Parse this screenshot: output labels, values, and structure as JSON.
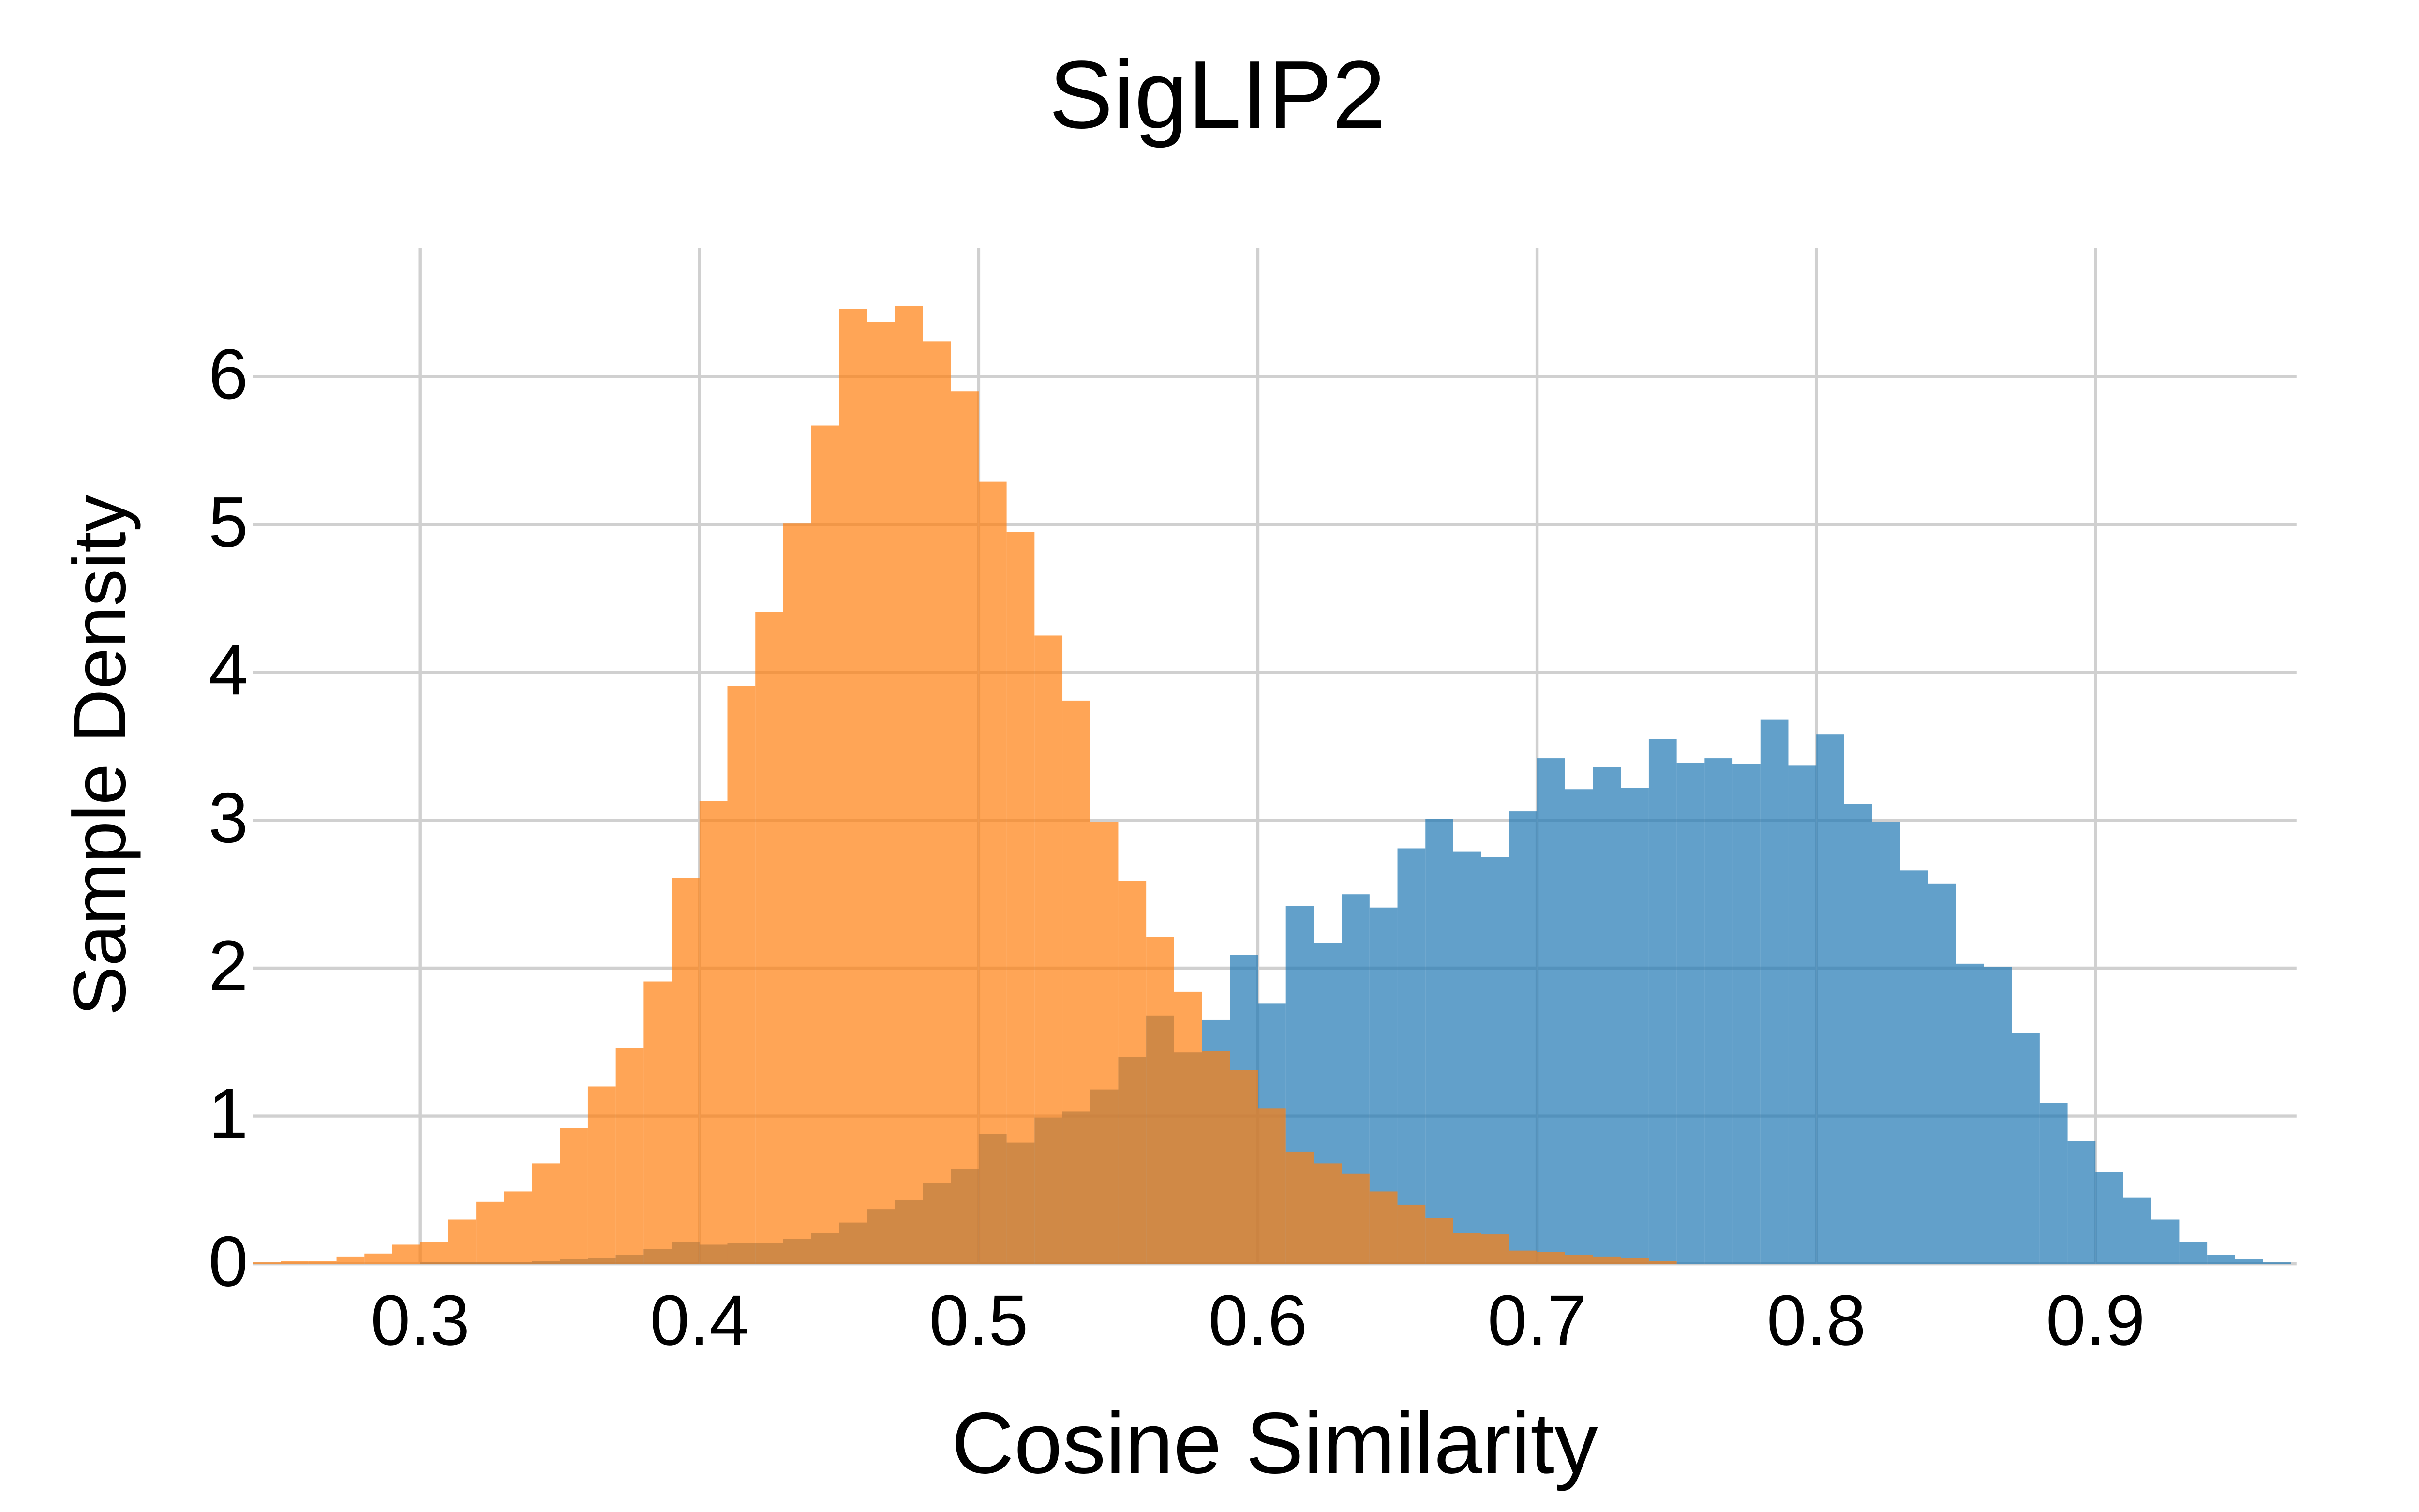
{
  "chart_data": {
    "type": "histogram",
    "title": "SigLIP2",
    "x_label": "Cosine Similarity",
    "y_label": "Sample Density",
    "bins": [
      0.24,
      0.25,
      0.26,
      0.27,
      0.28,
      0.29,
      0.3,
      0.31,
      0.32,
      0.33,
      0.34,
      0.35,
      0.36,
      0.37,
      0.38,
      0.39,
      0.4,
      0.41,
      0.42,
      0.43,
      0.44,
      0.45,
      0.46,
      0.47,
      0.48,
      0.49,
      0.5,
      0.51,
      0.52,
      0.53,
      0.54,
      0.55,
      0.56,
      0.57,
      0.58,
      0.59,
      0.6,
      0.61,
      0.62,
      0.63,
      0.64,
      0.65,
      0.66,
      0.67,
      0.68,
      0.69,
      0.7,
      0.71,
      0.72,
      0.73,
      0.74,
      0.75,
      0.76,
      0.77,
      0.78,
      0.79,
      0.8,
      0.81,
      0.82,
      0.83,
      0.84,
      0.85,
      0.86,
      0.87,
      0.88,
      0.89,
      0.9,
      0.91,
      0.92,
      0.93,
      0.94,
      0.95,
      0.96,
      0.97
    ],
    "series": [
      {
        "color": "#1f77b4",
        "values": [
          0,
          0,
          0,
          0,
          0,
          0,
          0.01,
          0.01,
          0.01,
          0.01,
          0.02,
          0.03,
          0.04,
          0.06,
          0.1,
          0.15,
          0.13,
          0.14,
          0.14,
          0.17,
          0.21,
          0.28,
          0.37,
          0.43,
          0.55,
          0.64,
          0.88,
          0.82,
          0.99,
          1.03,
          1.18,
          1.4,
          1.68,
          1.43,
          1.65,
          2.09,
          1.76,
          2.42,
          2.17,
          2.5,
          2.41,
          2.81,
          3.01,
          2.79,
          2.75,
          3.06,
          3.42,
          3.21,
          3.36,
          3.22,
          3.55,
          3.39,
          3.42,
          3.38,
          3.68,
          3.37,
          3.58,
          3.11,
          2.99,
          2.66,
          2.57,
          2.03,
          2.01,
          1.56,
          1.09,
          0.83,
          0.62,
          0.45,
          0.3,
          0.15,
          0.06,
          0.03,
          0.01
        ]
      },
      {
        "color": "#ff7f0e",
        "values": [
          0.01,
          0.02,
          0.02,
          0.05,
          0.07,
          0.13,
          0.15,
          0.3,
          0.42,
          0.49,
          0.68,
          0.92,
          1.2,
          1.46,
          1.91,
          2.61,
          3.13,
          3.91,
          4.41,
          5.01,
          5.67,
          6.46,
          6.37,
          6.48,
          6.24,
          5.9,
          5.29,
          4.95,
          4.25,
          3.81,
          2.99,
          2.59,
          2.21,
          1.84,
          1.44,
          1.31,
          1.05,
          0.76,
          0.68,
          0.61,
          0.49,
          0.4,
          0.31,
          0.21,
          0.2,
          0.09,
          0.08,
          0.06,
          0.05,
          0.04,
          0.02,
          0,
          0,
          0,
          0,
          0,
          0,
          0,
          0,
          0,
          0,
          0,
          0,
          0,
          0,
          0,
          0,
          0,
          0,
          0,
          0,
          0,
          0
        ]
      }
    ],
    "opacity": 0.7,
    "xlim": [
      0.24,
      0.972
    ],
    "ylim": [
      0,
      6.87
    ],
    "xticks": [
      0.3,
      0.4,
      0.5,
      0.6,
      0.7,
      0.8,
      0.9
    ],
    "yticks": [
      0,
      1,
      2,
      3,
      4,
      5,
      6
    ],
    "grid": true
  }
}
